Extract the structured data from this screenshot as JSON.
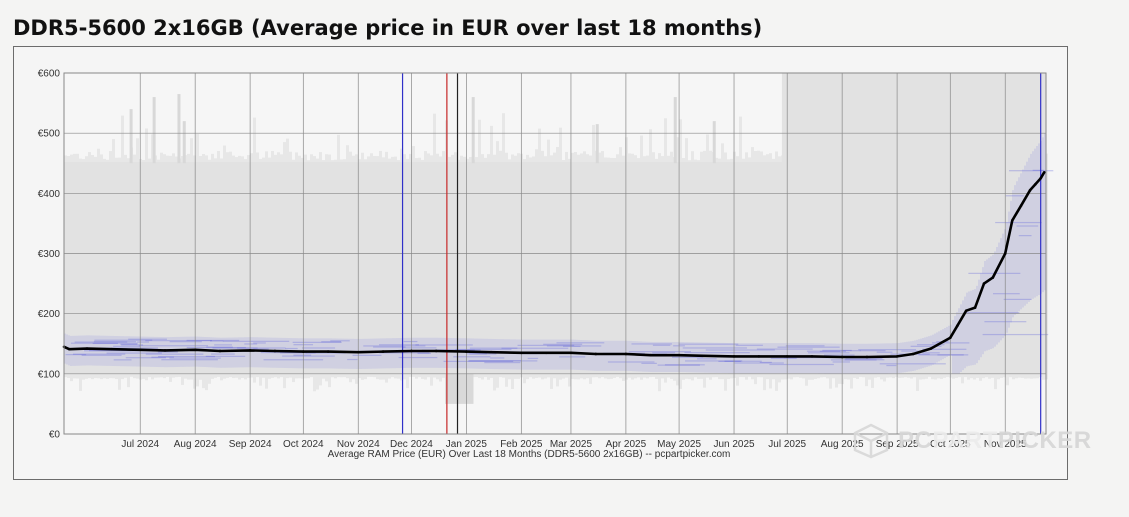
{
  "title": "DDR5-5600 2x16GB (Average price in EUR over last 18 months)",
  "watermark": {
    "brand_pc": "PC",
    "brand_part": "PART",
    "brand_picker": "PICKER",
    "icon": "pcpartpicker-logo-icon"
  },
  "colors": {
    "line": "#000000",
    "band": "#2f35d6",
    "grid": "#888888",
    "marker_blue": "#3030c8",
    "marker_red": "#c62828",
    "marker_black": "#222222"
  },
  "chart_data": {
    "type": "line",
    "title": "",
    "xlabel": "Average RAM Price (EUR) Over Last 18 Months (DDR5-5600 2x16GB) -- pcpartpicker.com",
    "ylabel": "",
    "ylim": [
      0,
      600
    ],
    "yticks": [
      0,
      100,
      200,
      300,
      400,
      500,
      600
    ],
    "ytick_labels": [
      "€0",
      "€100",
      "€200",
      "€300",
      "€400",
      "€500",
      "€600"
    ],
    "xlim": [
      "2024-05-19",
      "2025-11-24"
    ],
    "xticks": [
      "2024-07-01",
      "2024-08-01",
      "2024-09-01",
      "2024-10-01",
      "2024-11-01",
      "2024-12-01",
      "2025-01-01",
      "2025-02-01",
      "2025-03-01",
      "2025-04-01",
      "2025-05-01",
      "2025-06-01",
      "2025-07-01",
      "2025-08-01",
      "2025-09-01",
      "2025-10-01",
      "2025-11-01"
    ],
    "xtick_labels": [
      "Jul 2024",
      "Aug 2024",
      "Sep 2024",
      "Oct 2024",
      "Nov 2024",
      "Dec 2024",
      "Jan 2025",
      "Feb 2025",
      "Mar 2025",
      "Apr 2025",
      "May 2025",
      "Jun 2025",
      "Jul 2025",
      "Aug 2025",
      "Sep 2025",
      "Oct 2025",
      "Nov 2025"
    ],
    "grid": true,
    "vertical_markers": [
      {
        "date": "2024-11-26",
        "color": "blue"
      },
      {
        "date": "2024-12-21",
        "color": "red"
      },
      {
        "date": "2024-12-27",
        "color": "black"
      },
      {
        "date": "2025-11-21",
        "color": "blue"
      }
    ],
    "series": [
      {
        "x": [
          "2024-05-19",
          "2024-05-22",
          "2024-06-01",
          "2024-06-15",
          "2024-07-01",
          "2024-07-15",
          "2024-08-01",
          "2024-08-15",
          "2024-09-01",
          "2024-09-15",
          "2024-10-01",
          "2024-10-15",
          "2024-11-01",
          "2024-11-15",
          "2024-12-01",
          "2024-12-15",
          "2025-01-01",
          "2025-01-15",
          "2025-02-01",
          "2025-02-15",
          "2025-03-01",
          "2025-03-15",
          "2025-04-01",
          "2025-04-15",
          "2025-05-01",
          "2025-05-15",
          "2025-06-01",
          "2025-06-15",
          "2025-07-01",
          "2025-07-15",
          "2025-08-01",
          "2025-08-15",
          "2025-09-01",
          "2025-09-10",
          "2025-09-20",
          "2025-10-01",
          "2025-10-05",
          "2025-10-10",
          "2025-10-15",
          "2025-10-20",
          "2025-10-25",
          "2025-11-01",
          "2025-11-05",
          "2025-11-10",
          "2025-11-15",
          "2025-11-18",
          "2025-11-21",
          "2025-11-23"
        ],
        "values": [
          145,
          141,
          142,
          141,
          140,
          139,
          140,
          138,
          139,
          138,
          137,
          137,
          136,
          137,
          138,
          138,
          137,
          136,
          135,
          135,
          135,
          133,
          133,
          131,
          131,
          130,
          129,
          129,
          129,
          129,
          128,
          128,
          129,
          133,
          142,
          160,
          180,
          205,
          210,
          250,
          260,
          300,
          355,
          380,
          405,
          415,
          425,
          435
        ]
      }
    ]
  }
}
